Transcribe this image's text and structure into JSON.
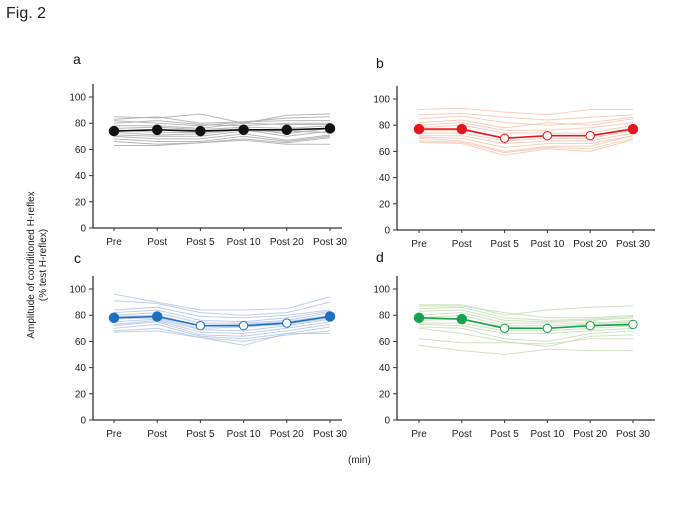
{
  "figure": {
    "title": "Fig. 2",
    "ylabel_line1": "Amplitude of conditioned H-reflex",
    "ylabel_line2": "(% test H-reflex)",
    "xunit": "(min)"
  },
  "chart_data": [
    {
      "type": "line",
      "panel": "a",
      "categories": [
        "Pre",
        "Post",
        "Post 5",
        "Post 10",
        "Post 20",
        "Post 30"
      ],
      "yticks": [
        0,
        20,
        40,
        60,
        80,
        100
      ],
      "ylim": [
        0,
        110
      ],
      "main_color": "#111111",
      "subject_color": "#b0b0b0",
      "mean": [
        74,
        75,
        74,
        75,
        75,
        76
      ],
      "open_markers": [
        false,
        false,
        false,
        false,
        false,
        false
      ],
      "subjects": [
        [
          85,
          84,
          87,
          80,
          86,
          87
        ],
        [
          83,
          85,
          80,
          81,
          84,
          85
        ],
        [
          82,
          80,
          78,
          81,
          82,
          82
        ],
        [
          80,
          82,
          79,
          78,
          80,
          80
        ],
        [
          78,
          78,
          76,
          80,
          79,
          79
        ],
        [
          76,
          77,
          75,
          77,
          76,
          78
        ],
        [
          75,
          73,
          73,
          76,
          72,
          76
        ],
        [
          73,
          71,
          72,
          75,
          70,
          74
        ],
        [
          71,
          70,
          70,
          74,
          74,
          73
        ],
        [
          70,
          68,
          68,
          72,
          67,
          71
        ],
        [
          68,
          66,
          66,
          70,
          66,
          70
        ],
        [
          66,
          64,
          65,
          68,
          65,
          69
        ],
        [
          63,
          63,
          65,
          67,
          64,
          64
        ]
      ]
    },
    {
      "type": "line",
      "panel": "b",
      "categories": [
        "Pre",
        "Post",
        "Post 5",
        "Post 10",
        "Post 20",
        "Post 30"
      ],
      "yticks": [
        0,
        20,
        40,
        60,
        80,
        100
      ],
      "ylim": [
        0,
        110
      ],
      "main_color": "#e8141c",
      "subject_color": "#f5c9b6",
      "mean": [
        77,
        77,
        70,
        72,
        72,
        77
      ],
      "open_markers": [
        false,
        false,
        true,
        true,
        true,
        false
      ],
      "subjects": [
        [
          92,
          93,
          90,
          88,
          92,
          92
        ],
        [
          88,
          89,
          86,
          84,
          86,
          88
        ],
        [
          85,
          87,
          82,
          80,
          82,
          86
        ],
        [
          82,
          84,
          78,
          82,
          80,
          85
        ],
        [
          80,
          82,
          76,
          76,
          78,
          82
        ],
        [
          78,
          80,
          74,
          74,
          74,
          80
        ],
        [
          76,
          76,
          70,
          72,
          72,
          78
        ],
        [
          74,
          74,
          68,
          70,
          70,
          76
        ],
        [
          72,
          72,
          66,
          68,
          68,
          74
        ],
        [
          71,
          70,
          63,
          66,
          66,
          72
        ],
        [
          70,
          68,
          60,
          64,
          64,
          72
        ],
        [
          68,
          67,
          59,
          63,
          62,
          70
        ],
        [
          67,
          66,
          57,
          62,
          60,
          69
        ]
      ]
    },
    {
      "type": "line",
      "panel": "c",
      "categories": [
        "Pre",
        "Post",
        "Post 5",
        "Post 10",
        "Post 20",
        "Post 30"
      ],
      "yticks": [
        0,
        20,
        40,
        60,
        80,
        100
      ],
      "ylim": [
        0,
        110
      ],
      "main_color": "#1a6fc0",
      "subject_color": "#b8c9e6",
      "mean": [
        78,
        79,
        72,
        72,
        74,
        79
      ],
      "open_markers": [
        false,
        false,
        true,
        true,
        true,
        false
      ],
      "subjects": [
        [
          96,
          90,
          84,
          84,
          85,
          94
        ],
        [
          91,
          89,
          82,
          80,
          82,
          90
        ],
        [
          84,
          86,
          79,
          78,
          80,
          84
        ],
        [
          82,
          84,
          76,
          75,
          78,
          83
        ],
        [
          80,
          82,
          74,
          74,
          76,
          82
        ],
        [
          79,
          80,
          72,
          73,
          75,
          80
        ],
        [
          77,
          78,
          70,
          71,
          73,
          78
        ],
        [
          75,
          77,
          69,
          68,
          72,
          77
        ],
        [
          73,
          76,
          67,
          66,
          70,
          75
        ],
        [
          72,
          75,
          65,
          64,
          68,
          73
        ],
        [
          70,
          73,
          64,
          62,
          66,
          71
        ],
        [
          68,
          70,
          63,
          60,
          65,
          68
        ],
        [
          67,
          68,
          63,
          57,
          66,
          66
        ]
      ]
    },
    {
      "type": "line",
      "panel": "d",
      "categories": [
        "Pre",
        "Post",
        "Post 5",
        "Post 10",
        "Post 20",
        "Post 30"
      ],
      "yticks": [
        0,
        20,
        40,
        60,
        80,
        100
      ],
      "ylim": [
        0,
        110
      ],
      "main_color": "#18a24c",
      "subject_color": "#c8dfb8",
      "mean": [
        78,
        77,
        70,
        70,
        72,
        73
      ],
      "open_markers": [
        false,
        false,
        true,
        true,
        true,
        true
      ],
      "subjects": [
        [
          88,
          88,
          80,
          84,
          86,
          87
        ],
        [
          87,
          87,
          82,
          78,
          78,
          80
        ],
        [
          85,
          86,
          78,
          76,
          77,
          79
        ],
        [
          83,
          84,
          76,
          75,
          76,
          78
        ],
        [
          80,
          82,
          74,
          74,
          74,
          76
        ],
        [
          78,
          80,
          72,
          72,
          73,
          75
        ],
        [
          76,
          77,
          71,
          70,
          72,
          74
        ],
        [
          74,
          74,
          68,
          68,
          70,
          72
        ],
        [
          73,
          72,
          66,
          66,
          68,
          70
        ],
        [
          71,
          70,
          62,
          60,
          66,
          68
        ],
        [
          70,
          66,
          60,
          56,
          64,
          65
        ],
        [
          62,
          59,
          59,
          58,
          62,
          62
        ],
        [
          57,
          53,
          50,
          54,
          53,
          53
        ]
      ]
    }
  ]
}
